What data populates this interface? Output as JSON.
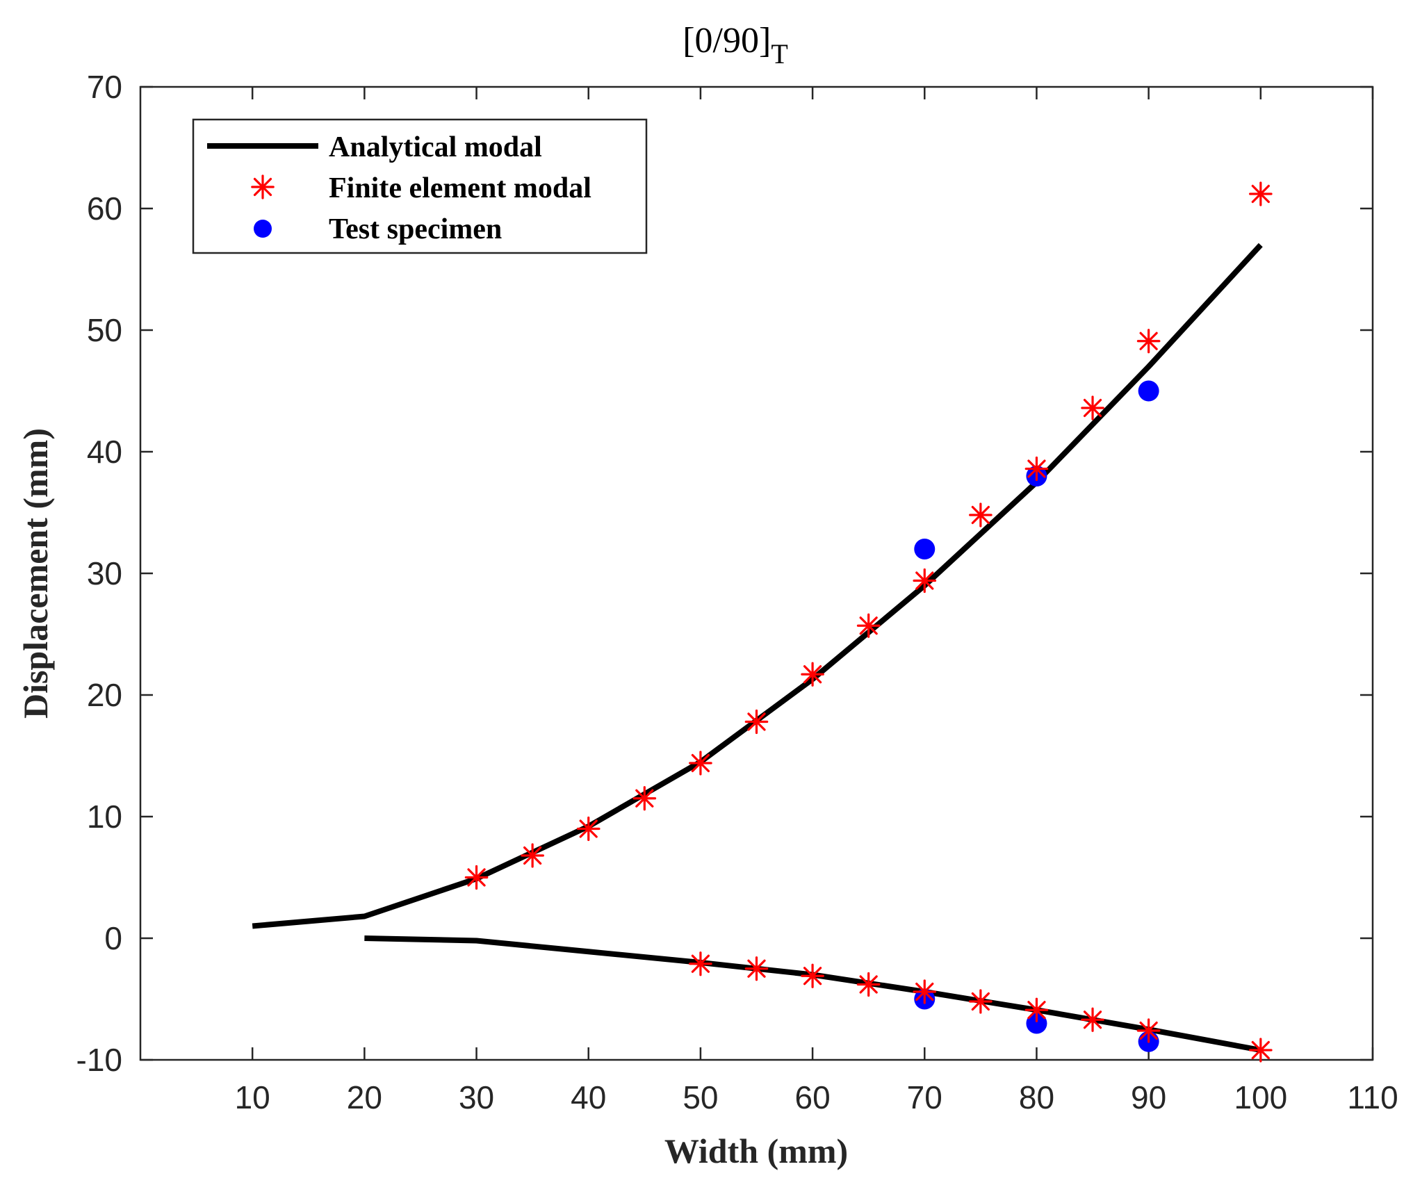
{
  "chart_data": {
    "type": "line",
    "title": "[0/90]",
    "title_subscript": "T",
    "xlabel": "Width (mm)",
    "ylabel": "Displacement (mm)",
    "xlim": [
      0,
      110
    ],
    "ylim": [
      -10,
      70
    ],
    "xticks": [
      10,
      20,
      30,
      40,
      50,
      60,
      70,
      80,
      90,
      100,
      110
    ],
    "yticks": [
      -10,
      0,
      10,
      20,
      30,
      40,
      50,
      60,
      70
    ],
    "legend_position": "top-left",
    "series": [
      {
        "name": "Analytical modal",
        "style": "line",
        "color": "#000000",
        "segments": [
          {
            "x": [
              10,
              20,
              30,
              40,
              50,
              60,
              70,
              80,
              90,
              100
            ],
            "y": [
              1,
              1.8,
              4.9,
              9.2,
              14.5,
              21.3,
              29.0,
              37.5,
              47.0,
              57.0
            ]
          },
          {
            "x": [
              20,
              30,
              40,
              50,
              60,
              70,
              80,
              90,
              100
            ],
            "y": [
              0,
              -0.2,
              -1.1,
              -2.0,
              -3.0,
              -4.4,
              -5.9,
              -7.5,
              -9.2
            ]
          }
        ]
      },
      {
        "name": "Finite element modal",
        "style": "asterisk",
        "color": "#ff0000",
        "points": [
          [
            30,
            5.0
          ],
          [
            35,
            6.8
          ],
          [
            40,
            9.0
          ],
          [
            45,
            11.5
          ],
          [
            50,
            14.4
          ],
          [
            55,
            17.8
          ],
          [
            60,
            21.7
          ],
          [
            65,
            25.7
          ],
          [
            70,
            29.4
          ],
          [
            75,
            34.8
          ],
          [
            80,
            38.6
          ],
          [
            85,
            43.6
          ],
          [
            90,
            49.1
          ],
          [
            100,
            61.2
          ],
          [
            50,
            -2.1
          ],
          [
            55,
            -2.5
          ],
          [
            60,
            -3.1
          ],
          [
            65,
            -3.8
          ],
          [
            70,
            -4.4
          ],
          [
            75,
            -5.2
          ],
          [
            80,
            -5.9
          ],
          [
            85,
            -6.7
          ],
          [
            90,
            -7.6
          ],
          [
            100,
            -9.2
          ]
        ]
      },
      {
        "name": "Test specimen",
        "style": "circle",
        "color": "#0000ff",
        "points": [
          [
            70,
            32
          ],
          [
            80,
            38
          ],
          [
            90,
            45
          ],
          [
            70,
            -5
          ],
          [
            80,
            -7
          ],
          [
            90,
            -8.5
          ]
        ]
      }
    ]
  }
}
